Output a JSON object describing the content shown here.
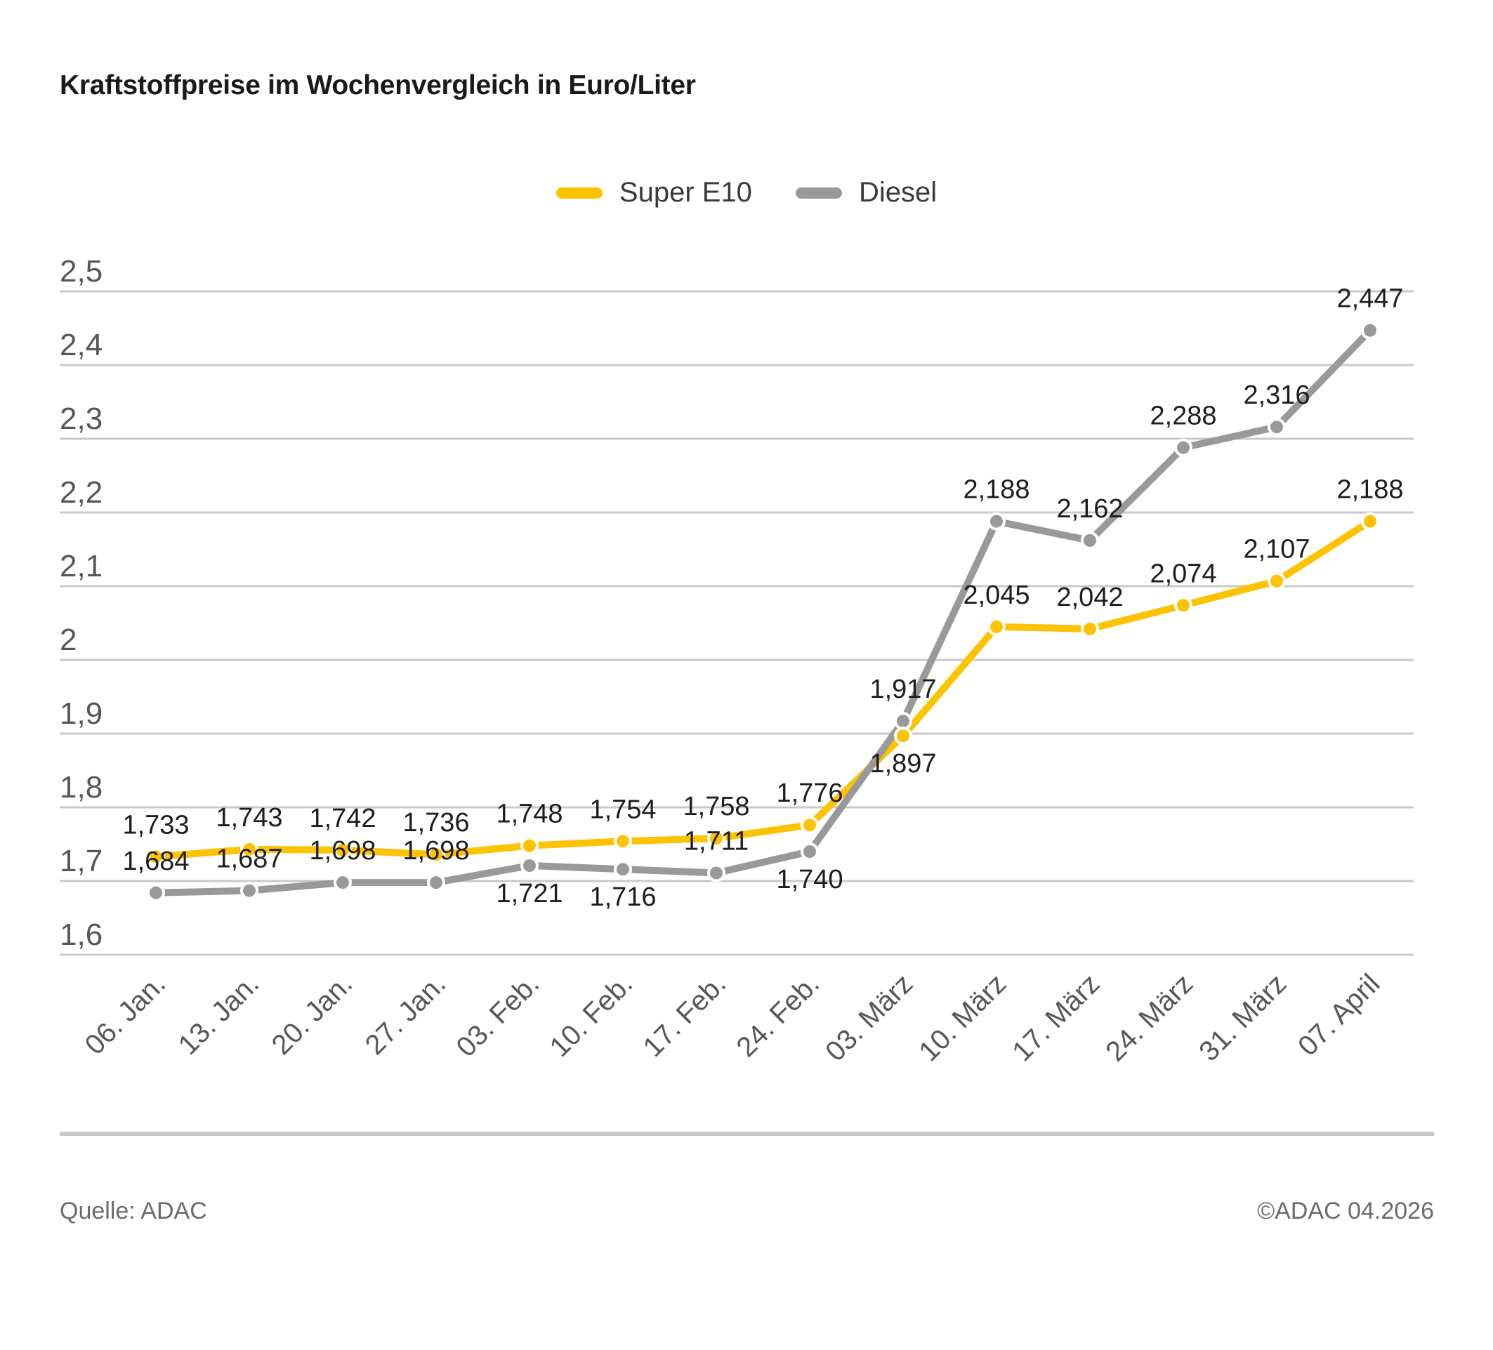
{
  "title": "Kraftstoffpreise im Wochenvergleich in Euro/Liter",
  "legend": [
    {
      "label": "Super E10",
      "color": "#FDC300"
    },
    {
      "label": "Diesel",
      "color": "#999999"
    }
  ],
  "footer": {
    "source": "Quelle: ADAC",
    "copyright": "©ADAC 04.2026"
  },
  "chart_data": {
    "type": "line",
    "title": "Kraftstoffpreise im Wochenvergleich in Euro/Liter",
    "xlabel": "",
    "ylabel": "Euro/Liter",
    "grid": true,
    "legend_position": "top",
    "categories": [
      "06. Jan.",
      "13. Jan.",
      "20. Jan.",
      "27. Jan.",
      "03. Feb.",
      "10. Feb.",
      "17. Feb.",
      "24. Feb.",
      "03. März",
      "10. März",
      "17. März",
      "24. März",
      "31. März",
      "07. April"
    ],
    "series": [
      {
        "name": "Super E10",
        "color": "#FDC300",
        "values": [
          1.733,
          1.743,
          1.742,
          1.736,
          1.748,
          1.754,
          1.758,
          1.776,
          1.897,
          2.045,
          2.042,
          2.074,
          2.107,
          2.188
        ],
        "labels": [
          "1,733",
          "1,743",
          "1,742",
          "1,736",
          "1,748",
          "1,754",
          "1,758",
          "1,776",
          "1,897",
          "2,045",
          "2,042",
          "2,074",
          "2,107",
          "2,188"
        ],
        "label_pos": [
          "above",
          "above",
          "above",
          "above",
          "above",
          "above",
          "above",
          "above",
          "below",
          "above",
          "above",
          "above",
          "above",
          "above"
        ]
      },
      {
        "name": "Diesel",
        "color": "#999999",
        "values": [
          1.684,
          1.687,
          1.698,
          1.698,
          1.721,
          1.716,
          1.711,
          1.74,
          1.917,
          2.188,
          2.162,
          2.288,
          2.316,
          2.447
        ],
        "labels": [
          "1,684",
          "1,687",
          "1,698",
          "1,698",
          "1,721",
          "1,716",
          "1,711",
          "1,740",
          "1,917",
          "2,188",
          "2,162",
          "2,288",
          "2,316",
          "2,447"
        ],
        "label_pos": [
          "above",
          "above",
          "above",
          "above",
          "below",
          "below",
          "above",
          "below",
          "above",
          "above",
          "above",
          "above",
          "above",
          "above"
        ]
      }
    ],
    "y_axis": {
      "min": 1.6,
      "max": 2.5,
      "tick_labels": [
        "2,5",
        "2,4",
        "2,3",
        "2,2",
        "2,1",
        "2",
        "1,9",
        "1,8",
        "1,7",
        "1,6"
      ],
      "tick_values": [
        2.5,
        2.4,
        2.3,
        2.2,
        2.1,
        2.0,
        1.9,
        1.8,
        1.7,
        1.6
      ]
    },
    "style_colors": {
      "grid": "#c9c9c9",
      "axis_text": "#575757",
      "value_text": "#1d1d1b",
      "marker_ring": "#ffffff"
    }
  }
}
